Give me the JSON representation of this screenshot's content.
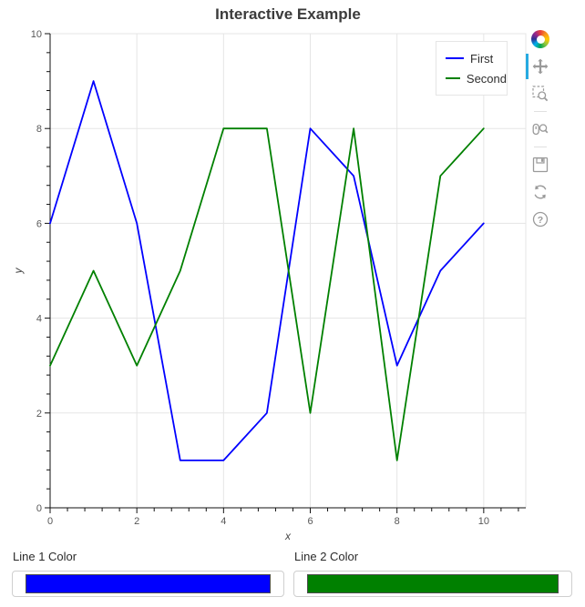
{
  "chart_data": {
    "type": "line",
    "title": "Interactive Example",
    "xlabel": "x",
    "ylabel": "y",
    "x": [
      0,
      1,
      2,
      3,
      4,
      5,
      6,
      7,
      8,
      9,
      10
    ],
    "series": [
      {
        "name": "First",
        "color": "#0000ff",
        "values": [
          6,
          9,
          6,
          1,
          1,
          2,
          8,
          7,
          3,
          5,
          6
        ]
      },
      {
        "name": "Second",
        "color": "#008000",
        "values": [
          3,
          5,
          3,
          5,
          8,
          8,
          2,
          8,
          1,
          7,
          8
        ]
      }
    ],
    "xlim": [
      0,
      10.97
    ],
    "ylim": [
      0,
      10
    ],
    "x_major_ticks": [
      0,
      2,
      4,
      6,
      8,
      10
    ],
    "y_major_ticks": [
      0,
      2,
      4,
      6,
      8,
      10
    ],
    "minor_tick_step": 0.4,
    "grid": true,
    "legend_position": "top_right",
    "colors": {
      "grid": "#e5e5e5",
      "outline": "#e5e5e5",
      "axis": "#111111",
      "tick_label": "#575757",
      "axis_label": "#474747",
      "title": "#3b3b3b"
    }
  },
  "legend": {
    "items": [
      {
        "label": "First",
        "color": "#0000ff"
      },
      {
        "label": "Second",
        "color": "#008000"
      }
    ]
  },
  "toolbar": {
    "active_tool": "pan",
    "active_color": "#26aae1",
    "icon_color": "#9a9a9a",
    "tools": [
      "bokeh-logo",
      "pan",
      "box-zoom",
      "wheel-zoom",
      "save",
      "reset",
      "help"
    ]
  },
  "icons": {
    "bokeh-logo": "multicolor-ring",
    "pan-icon": "four-direction-move-arrows",
    "box-zoom-icon": "dashed-box-with-magnifier",
    "wheel-zoom-icon": "mouse-wheel-with-magnifier",
    "save-icon": "floppy-disk",
    "reset-icon": "circular-refresh-arrows",
    "help-icon": "question-mark-in-circle"
  },
  "widgets": {
    "line1": {
      "label": "Line 1 Color",
      "value": "#0000ff"
    },
    "line2": {
      "label": "Line 2 Color",
      "value": "#008000"
    }
  }
}
